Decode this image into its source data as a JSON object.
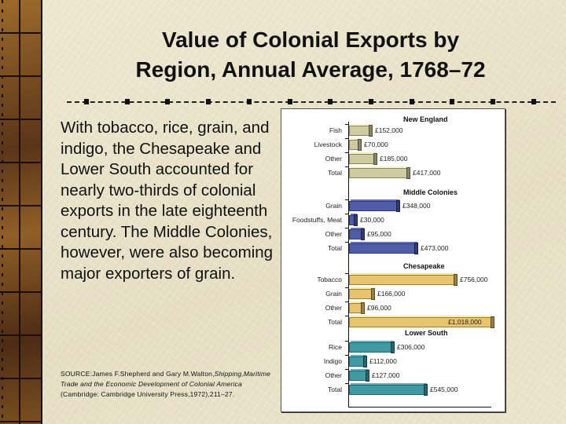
{
  "slide": {
    "title_line1": "Value of Colonial Exports by",
    "title_line2": "Region, Annual Average, 1768–72",
    "body": "With tobacco, rice, grain, and indigo, the Chesapeake and Lower South accounted for nearly two-thirds of colonial exports in the late eighteenth century. The Middle Colonies, however, were also becoming major exporters of grain.",
    "source_prefix": "SOURCE:James F.Shepherd and Gary M.Walton,",
    "source_title": "Shipping,Maritime Trade and the Economic Development of Colonial America",
    "source_suffix": " (Cambridge: Cambridge University Press,1972),211–27."
  },
  "colors": {
    "new_england": "#cfcba0",
    "middle_colonies": "#4f5ca8",
    "chesapeake": "#e8c46e",
    "lower_south": "#3f9aa3",
    "background": "#ebe5cc"
  },
  "chart_data": {
    "type": "bar",
    "orientation": "horizontal",
    "title": "Value of Colonial Exports by Region, Annual Average, 1768–72",
    "xlabel": "",
    "ylabel": "",
    "units": "£ (pounds sterling)",
    "grid": false,
    "legend": "none (region headings above each group)",
    "groups": [
      {
        "region": "New England",
        "color": "#cfcba0",
        "categories": [
          "Fish",
          "Livestock",
          "Other",
          "Total"
        ],
        "values": [
          152000,
          70000,
          185000,
          417000
        ],
        "labels": [
          "£152,000",
          "£70,000",
          "£185,000",
          "£417,000"
        ]
      },
      {
        "region": "Middle Colonies",
        "color": "#4f5ca8",
        "categories": [
          "Grain",
          "Foodstuffs, Meat",
          "Other",
          "Total"
        ],
        "values": [
          348000,
          30000,
          95000,
          473000
        ],
        "labels": [
          "£348,000",
          "£30,000",
          "£95,000",
          "£473,000"
        ]
      },
      {
        "region": "Chesapeake",
        "color": "#e8c46e",
        "categories": [
          "Tobacco",
          "Grain",
          "Other",
          "Total"
        ],
        "values": [
          756000,
          166000,
          96000,
          1018000
        ],
        "labels": [
          "£756,000",
          "£166,000",
          "£96,000",
          "£1,018,000"
        ]
      },
      {
        "region": "Lower South",
        "color": "#3f9aa3",
        "categories": [
          "Rice",
          "Indigo",
          "Other",
          "Total"
        ],
        "values": [
          306000,
          112000,
          127000,
          545000
        ],
        "labels": [
          "£306,000",
          "£112,000",
          "£127,000",
          "£545,000"
        ]
      }
    ],
    "xlim": [
      0,
      1018000
    ]
  }
}
